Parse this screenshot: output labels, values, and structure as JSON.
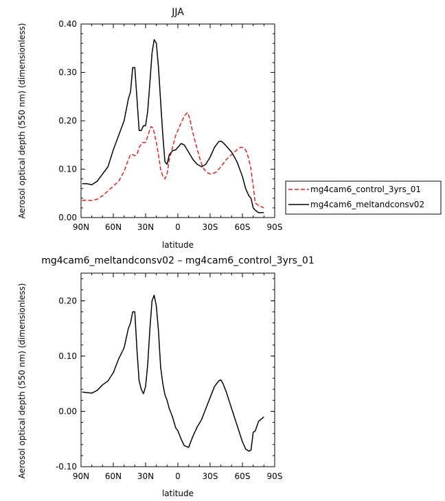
{
  "chart_data": [
    {
      "type": "line",
      "title": "JJA",
      "xlabel": "latitude",
      "ylabel": "Aerosol optical depth (550 nm) (dimensionless)",
      "x_ticks": [
        90,
        60,
        30,
        0,
        -30,
        -60,
        -90
      ],
      "x_tick_labels": [
        "90N",
        "60N",
        "30N",
        "0",
        "30S",
        "60S",
        "90S"
      ],
      "xlim": [
        90,
        -90
      ],
      "y_ticks": [
        0.0,
        0.1,
        0.2,
        0.3,
        0.4
      ],
      "y_tick_labels": [
        "0.00",
        "0.10",
        "0.20",
        "0.30",
        "0.40"
      ],
      "ylim": [
        0.0,
        0.4
      ],
      "legend_position": "right",
      "series": [
        {
          "name": "mg4cam6_control_3yrs_01",
          "color": "#e0201e",
          "dash": "dashed",
          "x": [
            89,
            85,
            80,
            75,
            70,
            65,
            60,
            55,
            50,
            46,
            44,
            42,
            40,
            38,
            36,
            33,
            30,
            27,
            25,
            23,
            21,
            20,
            18,
            16,
            14,
            12,
            10,
            8,
            5,
            2,
            0,
            -3,
            -6,
            -9,
            -11,
            -14,
            -17,
            -20,
            -23,
            -26,
            -30,
            -35,
            -40,
            -45,
            -50,
            -55,
            -58,
            -60,
            -62,
            -64,
            -66,
            -68,
            -70,
            -72,
            -75,
            -80
          ],
          "y": [
            0.035,
            0.036,
            0.035,
            0.038,
            0.045,
            0.055,
            0.065,
            0.075,
            0.095,
            0.12,
            0.13,
            0.13,
            0.128,
            0.13,
            0.145,
            0.155,
            0.155,
            0.175,
            0.188,
            0.185,
            0.165,
            0.155,
            0.13,
            0.1,
            0.085,
            0.08,
            0.09,
            0.12,
            0.145,
            0.17,
            0.18,
            0.195,
            0.21,
            0.217,
            0.205,
            0.175,
            0.15,
            0.125,
            0.105,
            0.095,
            0.09,
            0.093,
            0.105,
            0.12,
            0.13,
            0.14,
            0.145,
            0.145,
            0.143,
            0.135,
            0.12,
            0.1,
            0.065,
            0.03,
            0.025,
            0.02
          ]
        },
        {
          "name": "mg4cam6_meltandconsv02",
          "color": "#000000",
          "dash": "solid",
          "x": [
            89,
            85,
            80,
            75,
            70,
            65,
            60,
            55,
            50,
            46,
            44,
            42,
            40,
            38,
            36,
            34,
            32,
            30,
            28,
            26,
            24,
            22,
            20,
            18,
            16,
            14,
            12,
            10,
            8,
            5,
            2,
            0,
            -3,
            -6,
            -10,
            -14,
            -18,
            -22,
            -26,
            -30,
            -34,
            -38,
            -40,
            -42,
            -45,
            -50,
            -55,
            -60,
            -63,
            -66,
            -68,
            -70,
            -72,
            -75,
            -80
          ],
          "y": [
            0.07,
            0.07,
            0.068,
            0.075,
            0.09,
            0.105,
            0.14,
            0.17,
            0.2,
            0.245,
            0.26,
            0.31,
            0.31,
            0.245,
            0.18,
            0.18,
            0.19,
            0.19,
            0.22,
            0.28,
            0.34,
            0.368,
            0.36,
            0.31,
            0.24,
            0.17,
            0.115,
            0.11,
            0.13,
            0.138,
            0.14,
            0.145,
            0.153,
            0.15,
            0.135,
            0.12,
            0.11,
            0.105,
            0.11,
            0.125,
            0.145,
            0.157,
            0.158,
            0.155,
            0.148,
            0.135,
            0.115,
            0.085,
            0.06,
            0.045,
            0.04,
            0.02,
            0.015,
            0.01,
            0.01
          ]
        }
      ]
    },
    {
      "type": "line",
      "title": "mg4cam6_meltandconsv02 – mg4cam6_control_3yrs_01",
      "xlabel": "latitude",
      "ylabel": "Aerosol optical depth (550 nm) (dimensionless)",
      "x_ticks": [
        90,
        60,
        30,
        0,
        -30,
        -60,
        -90
      ],
      "x_tick_labels": [
        "90N",
        "60N",
        "30N",
        "0",
        "30S",
        "60S",
        "90S"
      ],
      "xlim": [
        90,
        -90
      ],
      "y_ticks": [
        -0.1,
        0.0,
        0.1,
        0.2
      ],
      "y_tick_labels": [
        "-0.10",
        "0.00",
        "0.10",
        "0.20"
      ],
      "ylim": [
        -0.1,
        0.25
      ],
      "series": [
        {
          "color": "#000000",
          "dash": "solid",
          "x": [
            89,
            85,
            80,
            75,
            70,
            65,
            60,
            55,
            50,
            46,
            44,
            42,
            40,
            38,
            36,
            34,
            32,
            30,
            28,
            26,
            24,
            22,
            20,
            18,
            16,
            14,
            12,
            10,
            8,
            5,
            2,
            0,
            -3,
            -6,
            -10,
            -14,
            -18,
            -22,
            -26,
            -30,
            -34,
            -38,
            -40,
            -42,
            -45,
            -50,
            -55,
            -60,
            -63,
            -66,
            -68,
            -70,
            -72,
            -75,
            -80
          ],
          "y": [
            0.035,
            0.034,
            0.033,
            0.038,
            0.048,
            0.055,
            0.07,
            0.095,
            0.115,
            0.15,
            0.16,
            0.18,
            0.18,
            0.11,
            0.055,
            0.04,
            0.032,
            0.045,
            0.085,
            0.15,
            0.2,
            0.21,
            0.19,
            0.145,
            0.08,
            0.05,
            0.03,
            0.02,
            0.005,
            -0.01,
            -0.03,
            -0.035,
            -0.05,
            -0.062,
            -0.065,
            -0.045,
            -0.028,
            -0.015,
            0.005,
            0.025,
            0.045,
            0.055,
            0.057,
            0.05,
            0.035,
            0.005,
            -0.025,
            -0.055,
            -0.068,
            -0.072,
            -0.07,
            -0.038,
            -0.035,
            -0.018,
            -0.01
          ]
        }
      ]
    }
  ]
}
